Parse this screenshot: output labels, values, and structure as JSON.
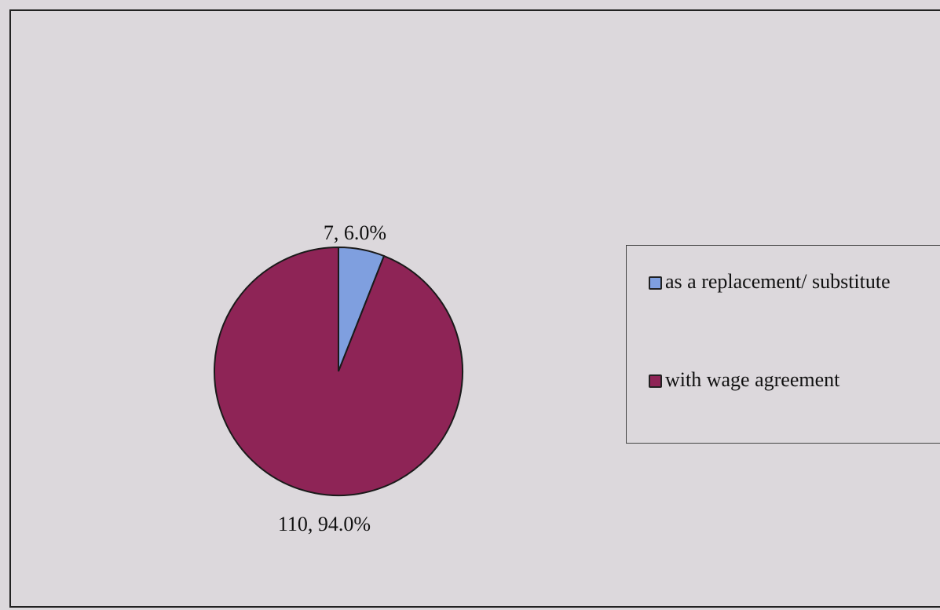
{
  "chart_data": {
    "type": "pie",
    "slices": [
      {
        "label": "as a replacement/ substitute",
        "value": 7,
        "percent": "6.0%",
        "data_label": "7, 6.0%",
        "color": "#7f9fdf"
      },
      {
        "label": "with wage agreement",
        "value": 110,
        "percent": "94.0%",
        "data_label": "110, 94.0%",
        "color": "#8e2456"
      }
    ],
    "start_angle_deg": 0,
    "direction": "clockwise",
    "legend_position": "right"
  }
}
